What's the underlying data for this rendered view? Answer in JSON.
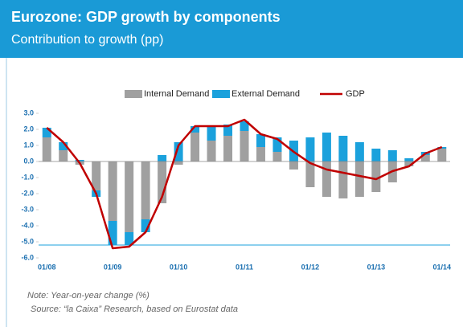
{
  "chart_data": {
    "type": "bar-line",
    "title": "Eurozone: GDP growth by components",
    "subtitle": "Contribution to growth (pp)",
    "notes": [
      "Note: Year-on-year change (%)",
      "Source: “la Caixa” Research, based on Eurostat data"
    ],
    "categories": [
      "01/08",
      null,
      null,
      null,
      "01/09",
      null,
      null,
      null,
      "01/10",
      null,
      null,
      null,
      "01/11",
      null,
      null,
      null,
      "01/12",
      null,
      null,
      null,
      "01/13",
      null,
      null,
      null,
      "01/14"
    ],
    "series": [
      {
        "name": "Internal Demand",
        "color": "#a0a0a0",
        "kind": "bar",
        "values": [
          1.5,
          0.7,
          -0.2,
          -1.8,
          -3.7,
          -4.4,
          -3.6,
          -2.6,
          -0.2,
          1.8,
          1.3,
          1.6,
          1.9,
          0.9,
          0.6,
          -0.5,
          -1.6,
          -2.2,
          -2.3,
          -2.2,
          -1.9,
          -1.3,
          -0.3,
          0.4,
          0.8
        ]
      },
      {
        "name": "External Demand",
        "color": "#1ba1dc",
        "kind": "bar",
        "values": [
          0.6,
          0.5,
          0.1,
          -0.4,
          -1.5,
          -0.8,
          -0.8,
          0.4,
          1.2,
          0.4,
          0.9,
          0.7,
          0.6,
          0.8,
          0.9,
          1.3,
          1.5,
          1.8,
          1.6,
          1.2,
          0.8,
          0.7,
          0.2,
          0.2,
          0.1
        ]
      },
      {
        "name": "GDP",
        "color": "#c00000",
        "kind": "line",
        "values": [
          2.1,
          1.2,
          -0.1,
          -2.0,
          -5.4,
          -5.3,
          -4.4,
          -2.2,
          1.0,
          2.2,
          2.2,
          2.2,
          2.6,
          1.7,
          1.4,
          0.6,
          -0.1,
          -0.5,
          -0.7,
          -0.9,
          -1.1,
          -0.6,
          -0.3,
          0.5,
          0.9
        ]
      }
    ],
    "ylim": [
      -6,
      3
    ],
    "yticks": [
      {
        "value": 3,
        "label": "3.0"
      },
      {
        "value": 2,
        "label": "2.0"
      },
      {
        "value": 1,
        "label": "1.0"
      },
      {
        "value": 0,
        "label": "0.0"
      },
      {
        "value": -1,
        "label": "-1.0"
      },
      {
        "value": -2,
        "label": "-2.0"
      },
      {
        "value": -3,
        "label": "-3.0"
      },
      {
        "value": -4,
        "label": "-4.0"
      },
      {
        "value": -5,
        "label": "-5.0"
      },
      {
        "value": -6,
        "label": "-6.0"
      }
    ],
    "legend": "top"
  }
}
